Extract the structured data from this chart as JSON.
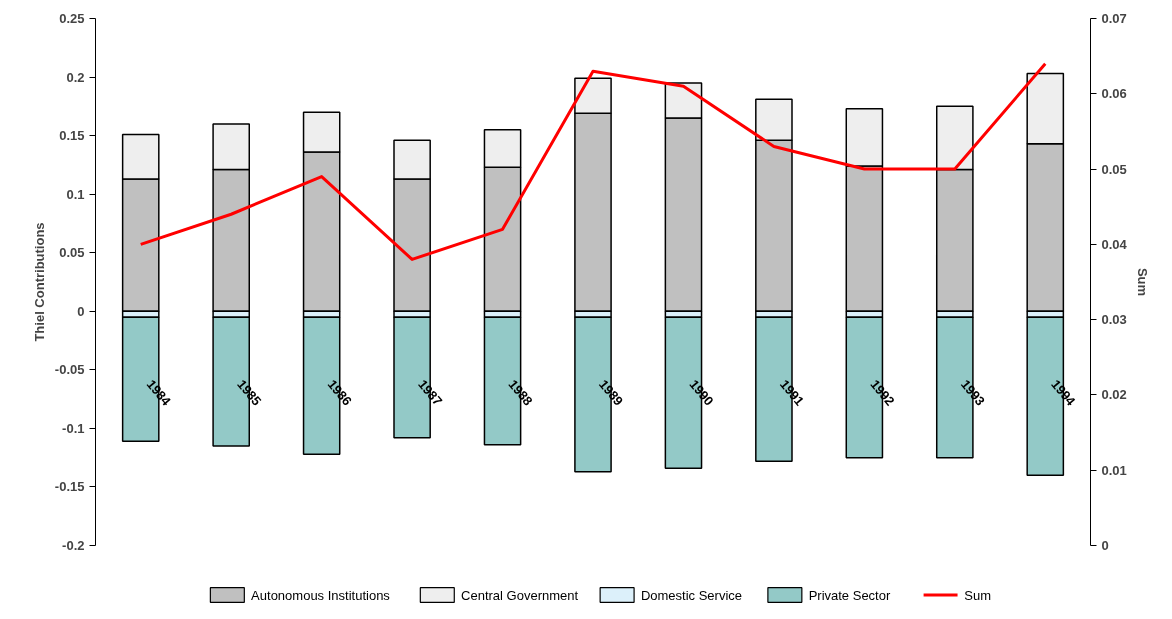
{
  "chart_data": {
    "type": "bar",
    "stacked": true,
    "ylabel": "Thiel Contributions",
    "y2label": "Sum",
    "categories": [
      "1984",
      "1985",
      "1986",
      "1987",
      "1988",
      "1989",
      "1990",
      "1991",
      "1992",
      "1993",
      "1994"
    ],
    "series": [
      {
        "name": "Autonomous Institutions",
        "color": "#c0c0c0",
        "values": [
          0.113,
          0.121,
          0.136,
          0.113,
          0.123,
          0.169,
          0.165,
          0.146,
          0.124,
          0.121,
          0.143
        ]
      },
      {
        "name": "Central Government",
        "color": "#eeeeee",
        "values": [
          0.038,
          0.039,
          0.034,
          0.033,
          0.032,
          0.03,
          0.03,
          0.035,
          0.049,
          0.054,
          0.06
        ]
      },
      {
        "name": "Domestic Service",
        "color": "#dcf0fa",
        "values": [
          -0.005,
          -0.005,
          -0.005,
          -0.005,
          -0.005,
          -0.005,
          -0.005,
          -0.005,
          -0.005,
          -0.005,
          -0.005
        ]
      },
      {
        "name": "Private Sector",
        "color": "#93c9c7",
        "values": [
          -0.106,
          -0.11,
          -0.117,
          -0.103,
          -0.109,
          -0.132,
          -0.129,
          -0.123,
          -0.12,
          -0.12,
          -0.135
        ]
      },
      {
        "name": "Sum",
        "type": "line",
        "axis": "y2",
        "color": "#ff0000",
        "values": [
          0.04,
          0.044,
          0.049,
          0.038,
          0.042,
          0.063,
          0.061,
          0.053,
          0.05,
          0.05,
          0.064
        ]
      }
    ],
    "ylim": [
      -0.2,
      0.25
    ],
    "yticks": [
      -0.2,
      -0.15,
      -0.1,
      -0.05,
      0,
      0.05,
      0.1,
      0.15,
      0.2,
      0.25
    ],
    "y2lim": [
      0,
      0.07
    ],
    "y2ticks": [
      0,
      0.01,
      0.02,
      0.03,
      0.04,
      0.05,
      0.06,
      0.07
    ],
    "grid": false,
    "legend": "bottom"
  }
}
